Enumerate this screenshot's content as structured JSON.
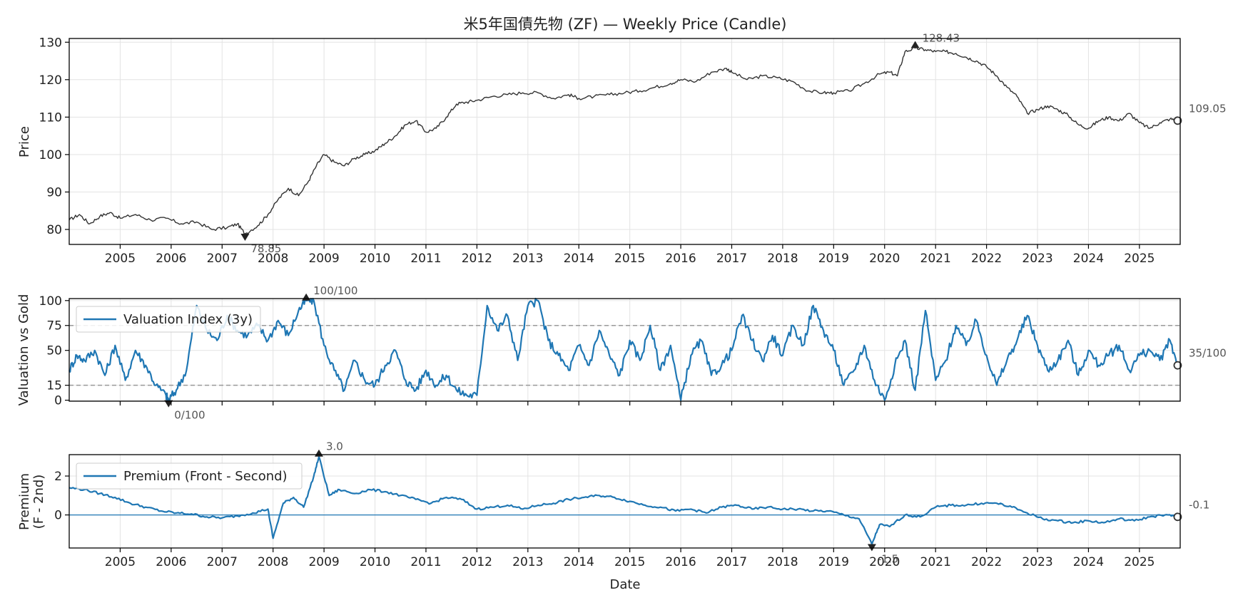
{
  "chart_data": [
    {
      "type": "line",
      "title": "米5年国債先物 (ZF) — Weekly Price (Candle)",
      "xlabel": "",
      "ylabel": "Price",
      "xlim": [
        2004.0,
        2025.8
      ],
      "ylim": [
        76,
        131
      ],
      "yticks": [
        80,
        90,
        100,
        110,
        120,
        130
      ],
      "xticks": [
        "2005",
        "2006",
        "2007",
        "2008",
        "2009",
        "2010",
        "2011",
        "2012",
        "2013",
        "2014",
        "2015",
        "2016",
        "2017",
        "2018",
        "2019",
        "2020",
        "2021",
        "2022",
        "2023",
        "2024",
        "2025"
      ],
      "grid": true,
      "color": "#333333",
      "series": [
        {
          "x": [
            2004.0,
            2004.2,
            2004.4,
            2004.6,
            2004.8,
            2005.0,
            2005.3,
            2005.6,
            2005.9,
            2006.2,
            2006.5,
            2006.8,
            2007.1,
            2007.3,
            2007.45,
            2007.7,
            2007.9,
            2008.1,
            2008.3,
            2008.5,
            2008.7,
            2008.85,
            2009.0,
            2009.2,
            2009.4,
            2009.6,
            2009.8,
            2010.0,
            2010.2,
            2010.4,
            2010.6,
            2010.8,
            2011.0,
            2011.2,
            2011.4,
            2011.6,
            2011.8,
            2012.0,
            2012.3,
            2012.6,
            2012.9,
            2013.2,
            2013.5,
            2013.8,
            2014.0,
            2014.3,
            2014.6,
            2014.9,
            2015.2,
            2015.5,
            2015.8,
            2016.0,
            2016.3,
            2016.6,
            2016.9,
            2017.0,
            2017.3,
            2017.6,
            2017.9,
            2018.2,
            2018.5,
            2018.8,
            2019.0,
            2019.3,
            2019.6,
            2019.9,
            2020.1,
            2020.25,
            2020.4,
            2020.6,
            2020.8,
            2021.0,
            2021.2,
            2021.4,
            2021.6,
            2021.8,
            2022.0,
            2022.2,
            2022.4,
            2022.6,
            2022.8,
            2023.0,
            2023.2,
            2023.4,
            2023.6,
            2023.8,
            2024.0,
            2024.2,
            2024.4,
            2024.6,
            2024.8,
            2025.0,
            2025.2,
            2025.4,
            2025.6,
            2025.75
          ],
          "y": [
            82.5,
            84,
            81.5,
            83.5,
            84.5,
            83,
            84,
            82.5,
            83,
            81.5,
            82,
            80,
            80.5,
            81.5,
            78.85,
            81,
            84,
            88,
            91,
            89,
            93,
            97,
            100,
            98,
            97,
            99,
            100,
            101,
            103,
            105,
            108,
            109,
            106,
            107,
            110,
            113.5,
            114,
            114.5,
            115.5,
            116,
            116.5,
            116.5,
            115,
            116,
            115,
            115.5,
            116,
            116.5,
            117,
            118,
            119,
            120,
            119.5,
            122,
            123,
            122,
            120,
            121,
            120.5,
            119.5,
            117,
            116.5,
            116.5,
            117,
            119,
            121.5,
            122,
            121,
            127.5,
            128.43,
            128,
            127.5,
            127.5,
            127,
            126,
            125,
            123.5,
            121,
            118,
            115.5,
            111,
            112,
            113,
            112,
            110.5,
            108,
            107,
            109,
            110,
            109,
            111,
            108.5,
            107,
            108.5,
            109.5,
            109.05
          ]
        }
      ],
      "annotations": [
        {
          "text": "128.43",
          "kind": "max",
          "x": 2020.6,
          "y": 128.43
        },
        {
          "text": "78.85",
          "kind": "min",
          "x": 2007.45,
          "y": 78.85
        },
        {
          "text": "109.05",
          "kind": "last",
          "x": 2025.75,
          "y": 109.05
        }
      ]
    },
    {
      "type": "line",
      "title": "",
      "xlabel": "",
      "ylabel": "Valuation vs Gold",
      "xlim": [
        2004.0,
        2025.8
      ],
      "ylim": [
        -1,
        102
      ],
      "yticks": [
        0,
        15,
        50,
        75,
        100
      ],
      "reference_lines": [
        15,
        75
      ],
      "grid": true,
      "color": "#1f77b4",
      "legend": {
        "placement": "upper-left",
        "entries": [
          "Valuation Index (3y)"
        ]
      },
      "series": [
        {
          "name": "Valuation Index (3y)",
          "x": [
            2004.0,
            2004.15,
            2004.3,
            2004.5,
            2004.7,
            2004.9,
            2005.1,
            2005.3,
            2005.5,
            2005.7,
            2005.9,
            2005.95,
            2006.1,
            2006.3,
            2006.5,
            2006.7,
            2006.9,
            2007.1,
            2007.3,
            2007.5,
            2007.7,
            2007.9,
            2008.1,
            2008.3,
            2008.5,
            2008.65,
            2008.8,
            2009.0,
            2009.2,
            2009.4,
            2009.6,
            2009.8,
            2010.0,
            2010.2,
            2010.4,
            2010.6,
            2010.8,
            2011.0,
            2011.2,
            2011.4,
            2011.6,
            2011.8,
            2012.0,
            2012.2,
            2012.4,
            2012.6,
            2012.8,
            2013.0,
            2013.2,
            2013.4,
            2013.6,
            2013.8,
            2014.0,
            2014.2,
            2014.4,
            2014.6,
            2014.8,
            2015.0,
            2015.2,
            2015.4,
            2015.6,
            2015.8,
            2016.0,
            2016.2,
            2016.4,
            2016.6,
            2016.8,
            2017.0,
            2017.2,
            2017.4,
            2017.6,
            2017.8,
            2018.0,
            2018.2,
            2018.4,
            2018.6,
            2018.8,
            2019.0,
            2019.2,
            2019.4,
            2019.6,
            2019.8,
            2020.0,
            2020.2,
            2020.4,
            2020.6,
            2020.8,
            2021.0,
            2021.2,
            2021.4,
            2021.6,
            2021.8,
            2022.0,
            2022.2,
            2022.4,
            2022.6,
            2022.8,
            2023.0,
            2023.2,
            2023.4,
            2023.6,
            2023.8,
            2024.0,
            2024.2,
            2024.4,
            2024.6,
            2024.8,
            2025.0,
            2025.2,
            2025.4,
            2025.6,
            2025.75
          ],
          "y": [
            30,
            45,
            40,
            50,
            25,
            55,
            20,
            50,
            35,
            15,
            5,
            0,
            10,
            30,
            95,
            70,
            60,
            85,
            70,
            65,
            75,
            60,
            80,
            65,
            90,
            100,
            100,
            55,
            30,
            10,
            40,
            20,
            15,
            35,
            50,
            20,
            10,
            30,
            15,
            25,
            10,
            5,
            5,
            95,
            70,
            85,
            40,
            95,
            100,
            60,
            45,
            30,
            55,
            35,
            70,
            45,
            25,
            60,
            40,
            75,
            30,
            55,
            0,
            45,
            60,
            25,
            35,
            50,
            85,
            60,
            40,
            65,
            45,
            75,
            55,
            95,
            70,
            50,
            15,
            30,
            55,
            20,
            0,
            35,
            60,
            10,
            90,
            20,
            40,
            75,
            55,
            80,
            45,
            15,
            40,
            60,
            85,
            55,
            30,
            40,
            60,
            25,
            50,
            35,
            45,
            55,
            30,
            45,
            50,
            40,
            60,
            35
          ]
        }
      ],
      "annotations": [
        {
          "text": "100/100",
          "kind": "max",
          "x": 2008.65,
          "y": 100
        },
        {
          "text": "0/100",
          "kind": "min",
          "x": 2005.95,
          "y": 0
        },
        {
          "text": "35/100",
          "kind": "last",
          "x": 2025.75,
          "y": 35
        }
      ]
    },
    {
      "type": "line",
      "title": "",
      "xlabel": "Date",
      "ylabel": "Premium\n(F - 2nd)",
      "xlim": [
        2004.0,
        2025.8
      ],
      "ylim": [
        -1.7,
        3.1
      ],
      "yticks": [
        0,
        2
      ],
      "xticks": [
        "2005",
        "2006",
        "2007",
        "2008",
        "2009",
        "2010",
        "2011",
        "2012",
        "2013",
        "2014",
        "2015",
        "2016",
        "2017",
        "2018",
        "2019",
        "2020",
        "2021",
        "2022",
        "2023",
        "2024",
        "2025"
      ],
      "reference_lines": [
        0
      ],
      "grid": true,
      "color": "#1f77b4",
      "legend": {
        "placement": "upper-left",
        "entries": [
          "Premium (Front - Second)"
        ]
      },
      "series": [
        {
          "name": "Premium (Front - Second)",
          "x": [
            2004.0,
            2004.3,
            2004.6,
            2004.9,
            2005.2,
            2005.5,
            2005.8,
            2006.1,
            2006.4,
            2006.7,
            2007.0,
            2007.3,
            2007.6,
            2007.9,
            2008.0,
            2008.2,
            2008.4,
            2008.6,
            2008.8,
            2008.9,
            2009.1,
            2009.3,
            2009.6,
            2009.9,
            2010.2,
            2010.5,
            2010.8,
            2011.1,
            2011.4,
            2011.7,
            2012.0,
            2012.3,
            2012.6,
            2012.9,
            2013.2,
            2013.5,
            2013.8,
            2014.1,
            2014.4,
            2014.7,
            2015.0,
            2015.3,
            2015.6,
            2015.9,
            2016.2,
            2016.5,
            2016.8,
            2017.1,
            2017.4,
            2017.7,
            2018.0,
            2018.3,
            2018.6,
            2018.9,
            2019.2,
            2019.5,
            2019.75,
            2019.9,
            2020.1,
            2020.4,
            2020.7,
            2021.0,
            2021.3,
            2021.6,
            2021.9,
            2022.2,
            2022.5,
            2022.8,
            2023.1,
            2023.4,
            2023.7,
            2024.0,
            2024.3,
            2024.6,
            2024.9,
            2025.2,
            2025.5,
            2025.75
          ],
          "y": [
            1.4,
            1.3,
            1.1,
            0.9,
            0.6,
            0.4,
            0.2,
            0.1,
            0.05,
            -0.1,
            -0.15,
            -0.05,
            0.1,
            0.3,
            -1.2,
            0.6,
            0.9,
            0.4,
            2.0,
            3.0,
            1.0,
            1.3,
            1.1,
            1.3,
            1.2,
            1.0,
            0.8,
            0.6,
            0.9,
            0.8,
            0.3,
            0.4,
            0.5,
            0.3,
            0.5,
            0.6,
            0.8,
            0.9,
            1.0,
            0.9,
            0.7,
            0.5,
            0.4,
            0.2,
            0.3,
            0.1,
            0.4,
            0.5,
            0.3,
            0.4,
            0.3,
            0.3,
            0.2,
            0.2,
            0.0,
            -0.2,
            -1.5,
            -0.5,
            -0.6,
            0.0,
            -0.1,
            0.4,
            0.5,
            0.5,
            0.6,
            0.6,
            0.4,
            0.1,
            -0.2,
            -0.3,
            -0.4,
            -0.3,
            -0.4,
            -0.2,
            -0.3,
            -0.1,
            0.0,
            -0.1
          ]
        }
      ],
      "annotations": [
        {
          "text": "3.0",
          "kind": "max",
          "x": 2008.9,
          "y": 3.0
        },
        {
          "text": "-1.5",
          "kind": "min",
          "x": 2019.75,
          "y": -1.5
        },
        {
          "text": "-0.1",
          "kind": "last",
          "x": 2025.75,
          "y": -0.1
        }
      ]
    }
  ]
}
